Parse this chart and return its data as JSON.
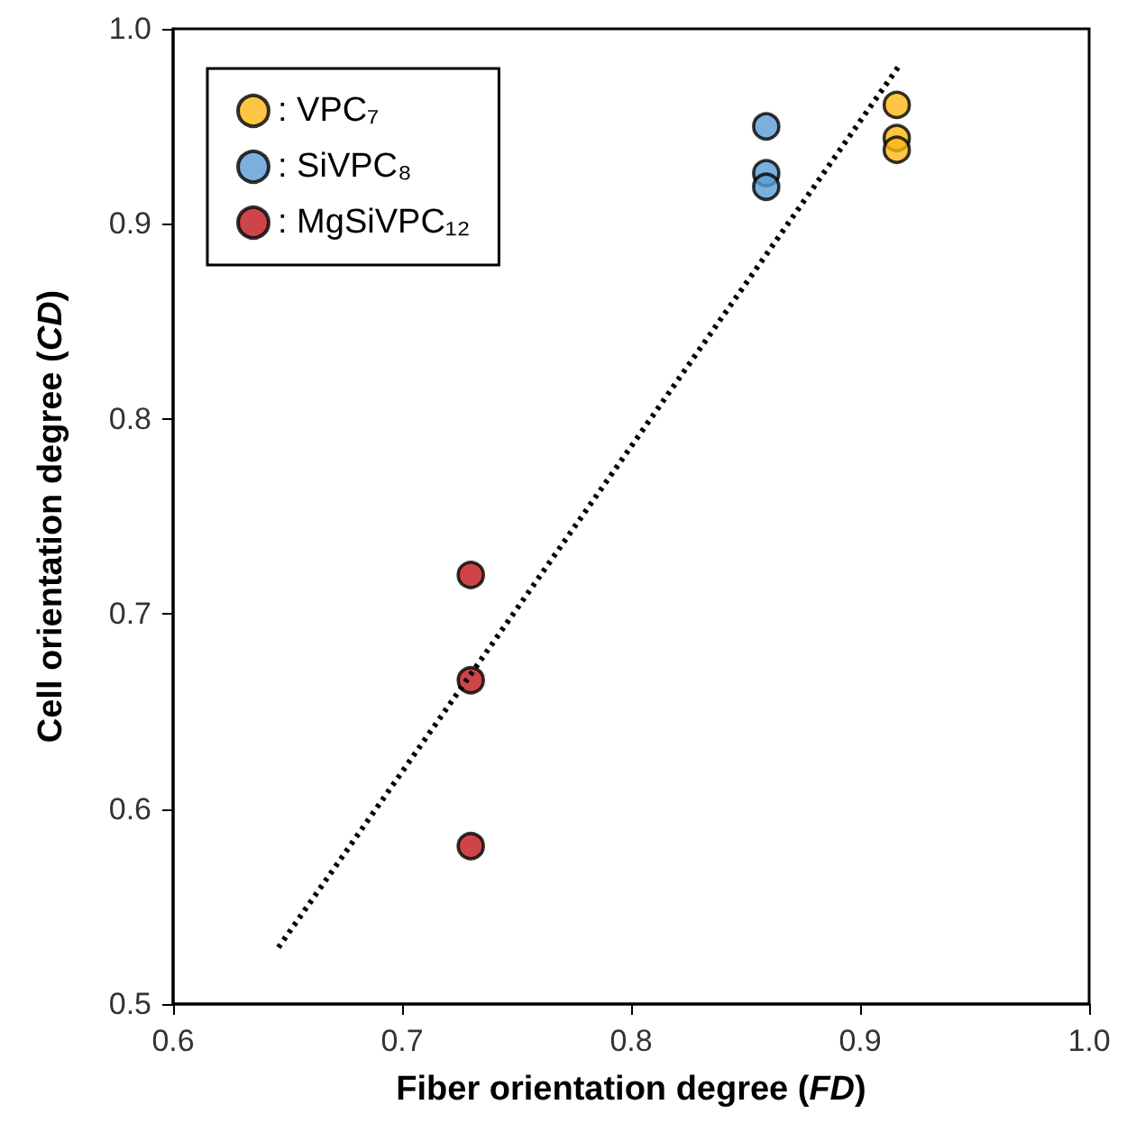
{
  "chart_data": {
    "type": "scatter",
    "xlabel": "Fiber orientation degree (FD)",
    "ylabel": "Cell orientation degree (CD)",
    "xlim": [
      0.6,
      1.0
    ],
    "xticks": [
      0.6,
      0.7,
      0.8,
      0.9,
      {
        "value": 1.0,
        "label": "1.0"
      }
    ],
    "ylim": [
      0.5,
      1.0
    ],
    "yticks": [
      0.5,
      0.6,
      0.7,
      0.8,
      0.9,
      {
        "value": 1.0,
        "label": "1.0"
      }
    ],
    "grid": false,
    "legend": "top left",
    "marker": "circle",
    "series": [
      {
        "name": ": VPC₇",
        "color": "#fbb714",
        "x": [
          0.916,
          0.916,
          0.916
        ],
        "values": [
          0.961,
          0.944,
          0.938
        ]
      },
      {
        "name": ": SiVPC₈",
        "color": "#5b9bd5",
        "x": [
          0.859,
          0.859,
          0.859
        ],
        "values": [
          0.95,
          0.926,
          0.919
        ]
      },
      {
        "name": ": MgSiVPC₁₂",
        "color": "#c0171c",
        "x": [
          0.73,
          0.73,
          0.73
        ],
        "values": [
          0.72,
          0.666,
          0.581
        ]
      },
      {
        "type": "line",
        "color": "#000000",
        "line_style": "dotted",
        "marker": "none",
        "x": [
          0.646,
          0.917
        ],
        "values": [
          0.529,
          0.981
        ]
      }
    ]
  }
}
